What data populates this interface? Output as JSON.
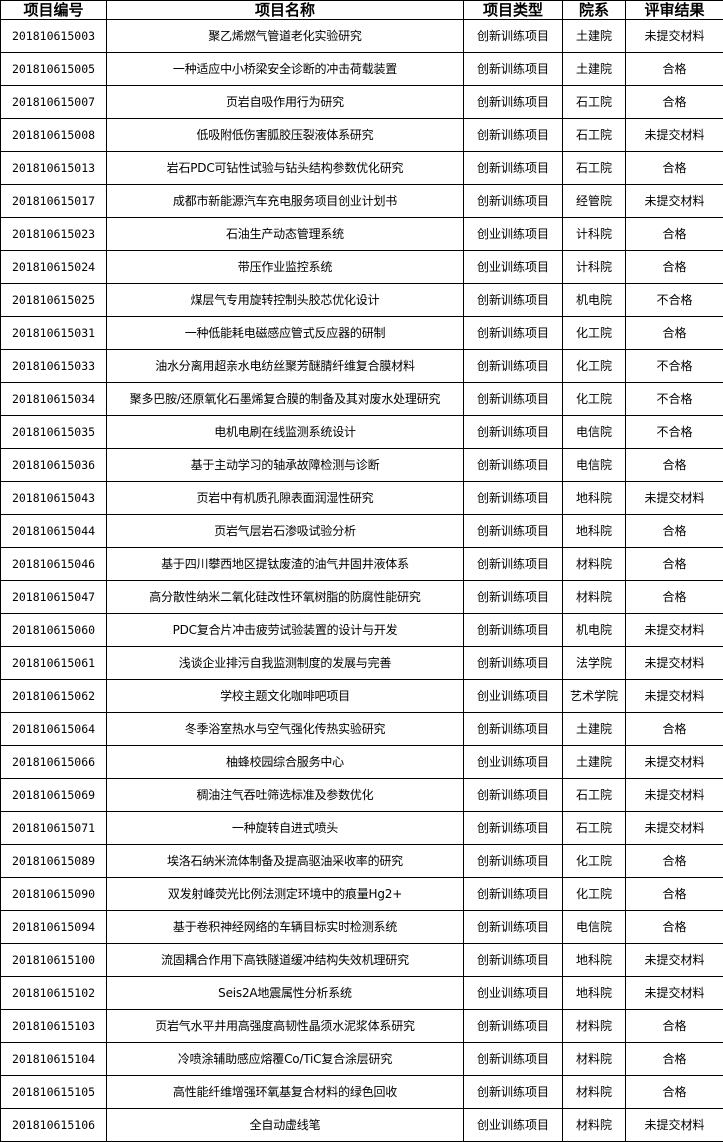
{
  "table": {
    "headers": [
      "项目编号",
      "项目名称",
      "项目类型",
      "院系",
      "评审结果"
    ],
    "rows": [
      [
        "201810615003",
        "聚乙烯燃气管道老化实验研究",
        "创新训练项目",
        "土建院",
        "未提交材料"
      ],
      [
        "201810615005",
        "一种适应中小桥梁安全诊断的冲击荷载装置",
        "创新训练项目",
        "土建院",
        "合格"
      ],
      [
        "201810615007",
        "页岩自吸作用行为研究",
        "创新训练项目",
        "石工院",
        "合格"
      ],
      [
        "201810615008",
        "低吸附低伤害胍胶压裂液体系研究",
        "创新训练项目",
        "石工院",
        "未提交材料"
      ],
      [
        "201810615013",
        "岩石PDC可钻性试验与钻头结构参数优化研究",
        "创新训练项目",
        "石工院",
        "合格"
      ],
      [
        "201810615017",
        "成都市新能源汽车充电服务项目创业计划书",
        "创新训练项目",
        "经管院",
        "未提交材料"
      ],
      [
        "201810615023",
        "石油生产动态管理系统",
        "创业训练项目",
        "计科院",
        "合格"
      ],
      [
        "201810615024",
        "带压作业监控系统",
        "创业训练项目",
        "计科院",
        "合格"
      ],
      [
        "201810615025",
        "煤层气专用旋转控制头胶芯优化设计",
        "创新训练项目",
        "机电院",
        "不合格"
      ],
      [
        "201810615031",
        "一种低能耗电磁感应管式反应器的研制",
        "创新训练项目",
        "化工院",
        "合格"
      ],
      [
        "201810615033",
        "油水分离用超亲水电纺丝聚芳醚腈纤维复合膜材料",
        "创新训练项目",
        "化工院",
        "不合格"
      ],
      [
        "201810615034",
        "聚多巴胺/还原氧化石墨烯复合膜的制备及其对废水处理研究",
        "创新训练项目",
        "化工院",
        "不合格"
      ],
      [
        "201810615035",
        "电机电刷在线监测系统设计",
        "创新训练项目",
        "电信院",
        "不合格"
      ],
      [
        "201810615036",
        "基于主动学习的轴承故障检测与诊断",
        "创新训练项目",
        "电信院",
        "合格"
      ],
      [
        "201810615043",
        "页岩中有机质孔隙表面润湿性研究",
        "创新训练项目",
        "地科院",
        "未提交材料"
      ],
      [
        "201810615044",
        "页岩气层岩石渗吸试验分析",
        "创新训练项目",
        "地科院",
        "合格"
      ],
      [
        "201810615046",
        "基于四川攀西地区提钛废渣的油气井固井液体系",
        "创新训练项目",
        "材料院",
        "合格"
      ],
      [
        "201810615047",
        "高分散性纳米二氧化硅改性环氧树脂的防腐性能研究",
        "创新训练项目",
        "材料院",
        "合格"
      ],
      [
        "201810615060",
        "PDC复合片冲击疲劳试验装置的设计与开发",
        "创新训练项目",
        "机电院",
        "未提交材料"
      ],
      [
        "201810615061",
        "浅谈企业排污自我监测制度的发展与完善",
        "创新训练项目",
        "法学院",
        "未提交材料"
      ],
      [
        "201810615062",
        "学校主题文化咖啡吧项目",
        "创业训练项目",
        "艺术学院",
        "未提交材料"
      ],
      [
        "201810615064",
        "冬季浴室热水与空气强化传热实验研究",
        "创新训练项目",
        "土建院",
        "合格"
      ],
      [
        "201810615066",
        "柚蜂校园综合服务中心",
        "创业训练项目",
        "土建院",
        "未提交材料"
      ],
      [
        "201810615069",
        "稠油注气吞吐筛选标准及参数优化",
        "创新训练项目",
        "石工院",
        "未提交材料"
      ],
      [
        "201810615071",
        "一种旋转自进式喷头",
        "创新训练项目",
        "石工院",
        "未提交材料"
      ],
      [
        "201810615089",
        "埃洛石纳米流体制备及提高驱油采收率的研究",
        "创新训练项目",
        "化工院",
        "合格"
      ],
      [
        "201810615090",
        "双发射峰荧光比例法测定环境中的痕量Hg2+",
        "创新训练项目",
        "化工院",
        "合格"
      ],
      [
        "201810615094",
        "基于卷积神经网络的车辆目标实时检测系统",
        "创新训练项目",
        "电信院",
        "合格"
      ],
      [
        "201810615100",
        "流固耦合作用下高铁隧道缓冲结构失效机理研究",
        "创新训练项目",
        "地科院",
        "未提交材料"
      ],
      [
        "201810615102",
        "Seis2A地震属性分析系统",
        "创业训练项目",
        "地科院",
        "未提交材料"
      ],
      [
        "201810615103",
        "页岩气水平井用高强度高韧性晶须水泥浆体系研究",
        "创新训练项目",
        "材料院",
        "合格"
      ],
      [
        "201810615104",
        "冷喷涂辅助感应熔覆Co/TiC复合涂层研究",
        "创新训练项目",
        "材料院",
        "合格"
      ],
      [
        "201810615105",
        "高性能纤维增强环氧基复合材料的绿色回收",
        "创新训练项目",
        "材料院",
        "合格"
      ],
      [
        "201810615106",
        "全自动虚线笔",
        "创业训练项目",
        "材料院",
        "未提交材料"
      ]
    ]
  }
}
